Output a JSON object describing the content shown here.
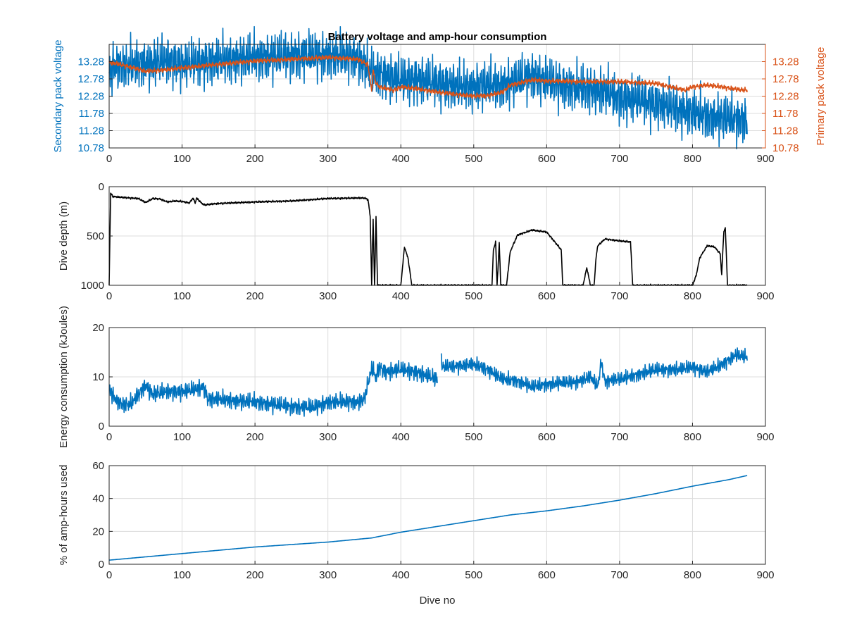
{
  "colors": {
    "blue": "#0072BD",
    "orange": "#D95319",
    "black": "#000000",
    "axis": "#262626"
  },
  "chart_data": [
    {
      "type": "line",
      "title": "Battery voltage and amp-hour consumption",
      "xlabel": "",
      "ylabel": "Secondary pack voltage",
      "ylabel_right": "Primary pack voltage",
      "xlim": [
        0,
        900
      ],
      "ylim": [
        10.78,
        13.78
      ],
      "ylim_right": [
        10.78,
        13.78
      ],
      "xticks": [
        "0",
        "100",
        "200",
        "300",
        "400",
        "500",
        "600",
        "700",
        "800",
        "900"
      ],
      "yticks": [
        "10.78",
        "11.28",
        "11.78",
        "12.28",
        "12.78",
        "13.28"
      ],
      "yticks_right": [
        "10.78",
        "11.28",
        "11.78",
        "12.28",
        "12.78",
        "13.28"
      ],
      "grid": true,
      "series": [
        {
          "axis": "left",
          "color": "#0072BD",
          "noise": [
            0.5,
            0.3,
            0.2
          ],
          "x": [
            0,
            5,
            10,
            20,
            40,
            60,
            80,
            100,
            150,
            200,
            250,
            300,
            340,
            350,
            360,
            370,
            380,
            400,
            420,
            450,
            480,
            500,
            520,
            540,
            560,
            580,
            600,
            620,
            640,
            660,
            680,
            700,
            720,
            740,
            760,
            780,
            800,
            820,
            840,
            860,
            875
          ],
          "y": [
            12.85,
            13.15,
            13.2,
            13.15,
            13.2,
            13.25,
            13.3,
            13.2,
            13.3,
            13.4,
            13.45,
            13.45,
            13.4,
            13.2,
            12.95,
            12.95,
            12.85,
            12.75,
            12.75,
            12.65,
            12.55,
            12.55,
            12.6,
            12.6,
            12.7,
            12.9,
            12.7,
            12.6,
            12.5,
            12.5,
            12.4,
            12.2,
            12.2,
            12.1,
            12.0,
            11.9,
            11.8,
            11.7,
            11.65,
            11.6,
            11.6
          ]
        },
        {
          "axis": "right",
          "color": "#D95319",
          "noise": [
            0.04,
            0.03,
            0.03
          ],
          "x": [
            0,
            10,
            30,
            50,
            80,
            100,
            150,
            200,
            250,
            300,
            340,
            355,
            360,
            362,
            365,
            370,
            380,
            390,
            400,
            420,
            450,
            480,
            500,
            520,
            530,
            540,
            545,
            550,
            560,
            580,
            600,
            650,
            700,
            750,
            770,
            790,
            800,
            820,
            840,
            860,
            875
          ],
          "y": [
            13.25,
            13.22,
            13.12,
            13.0,
            13.05,
            13.1,
            13.2,
            13.3,
            13.35,
            13.4,
            13.35,
            13.2,
            12.4,
            13.05,
            12.7,
            12.55,
            12.5,
            12.45,
            12.55,
            12.5,
            12.4,
            12.32,
            12.28,
            12.3,
            12.35,
            12.4,
            12.5,
            12.6,
            12.65,
            12.75,
            12.72,
            12.7,
            12.7,
            12.65,
            12.55,
            12.45,
            12.55,
            12.6,
            12.55,
            12.48,
            12.45
          ]
        }
      ]
    },
    {
      "type": "line",
      "xlabel": "",
      "ylabel": "Dive depth (m)",
      "xlim": [
        0,
        900
      ],
      "ylim": [
        0,
        1000
      ],
      "y_reversed": true,
      "xticks": [
        "0",
        "100",
        "200",
        "300",
        "400",
        "500",
        "600",
        "700",
        "800",
        "900"
      ],
      "yticks": [
        "0",
        "500",
        "1000"
      ],
      "grid": true,
      "series": [
        {
          "color": "#000000",
          "noise": [
            6,
            4,
            3
          ],
          "x": [
            0,
            2,
            5,
            20,
            40,
            50,
            60,
            70,
            80,
            90,
            100,
            110,
            115,
            118,
            120,
            125,
            130,
            150,
            200,
            250,
            300,
            340,
            350,
            355,
            358,
            360,
            362,
            364,
            366,
            368,
            370,
            400,
            405,
            410,
            415,
            418,
            420,
            450,
            500,
            525,
            527,
            530,
            532,
            535,
            537,
            540,
            545,
            550,
            560,
            580,
            600,
            620,
            622,
            650,
            655,
            660,
            665,
            668,
            670,
            680,
            700,
            715,
            718,
            720,
            750,
            780,
            795,
            800,
            805,
            810,
            820,
            830,
            838,
            840,
            843,
            845,
            848,
            850,
            870,
            875
          ],
          "y": [
            1000,
            65,
            100,
            110,
            120,
            160,
            120,
            125,
            155,
            145,
            150,
            165,
            115,
            165,
            115,
            155,
            185,
            170,
            155,
            145,
            120,
            115,
            115,
            130,
            300,
            1000,
            330,
            1000,
            300,
            1000,
            1000,
            1000,
            610,
            730,
            1000,
            1000,
            1000,
            1000,
            1000,
            1000,
            640,
            560,
            1000,
            570,
            1000,
            1000,
            1000,
            660,
            490,
            440,
            460,
            640,
            1000,
            1000,
            820,
            1000,
            1000,
            700,
            600,
            530,
            550,
            560,
            1000,
            1000,
            1000,
            1000,
            1000,
            1000,
            900,
            720,
            600,
            610,
            680,
            890,
            450,
            420,
            1000,
            1000,
            1000,
            1000
          ]
        }
      ]
    },
    {
      "type": "line",
      "xlabel": "",
      "ylabel": "Energy consumption (kJoules)",
      "xlim": [
        0,
        900
      ],
      "ylim": [
        0,
        20
      ],
      "xticks": [
        "0",
        "100",
        "200",
        "300",
        "400",
        "500",
        "600",
        "700",
        "800",
        "900"
      ],
      "yticks": [
        "0",
        "10",
        "20"
      ],
      "grid": true,
      "series": [
        {
          "color": "#0072BD",
          "noise": [
            1.4,
            0.6,
            0.4
          ],
          "x": [
            0,
            10,
            20,
            30,
            50,
            60,
            80,
            100,
            120,
            130,
            135,
            140,
            200,
            250,
            280,
            300,
            340,
            350,
            358,
            362,
            365,
            370,
            380,
            400,
            420,
            440,
            450
          ],
          "y": [
            7.5,
            5.2,
            4.3,
            4.5,
            8.3,
            6.5,
            7.0,
            7.0,
            7.5,
            8.0,
            5.5,
            5.5,
            4.9,
            4.0,
            3.8,
            4.9,
            4.9,
            5.5,
            10.5,
            12.0,
            9.5,
            12.0,
            11.0,
            11.5,
            11.0,
            10.0,
            9.5
          ]
        },
        {
          "color": "#0072BD",
          "noise": [
            1.2,
            0.5,
            0.3
          ],
          "x": [
            455,
            456,
            500,
            520,
            540,
            560,
            580,
            600,
            640,
            660,
            670,
            675,
            680,
            690,
            700,
            750,
            780,
            800,
            820,
            840,
            850,
            860,
            875
          ],
          "y": [
            16.0,
            12.0,
            12.5,
            11.5,
            9.5,
            9.2,
            8.0,
            8.5,
            9.0,
            10.0,
            8.0,
            13.0,
            9.0,
            9.5,
            9.5,
            11.5,
            11.5,
            12.0,
            11.0,
            12.5,
            13.5,
            14.5,
            14.0
          ]
        }
      ]
    },
    {
      "type": "line",
      "xlabel": "Dive no",
      "ylabel": "% of amp-hours used",
      "xlim": [
        0,
        900
      ],
      "ylim": [
        0,
        60
      ],
      "xticks": [
        "0",
        "100",
        "200",
        "300",
        "400",
        "500",
        "600",
        "700",
        "800",
        "900"
      ],
      "yticks": [
        "0",
        "20",
        "40",
        "60"
      ],
      "grid": true,
      "series": [
        {
          "color": "#0072BD",
          "noise": [
            0,
            0,
            0
          ],
          "x": [
            0,
            50,
            100,
            200,
            300,
            360,
            400,
            500,
            550,
            600,
            650,
            700,
            750,
            800,
            850,
            875
          ],
          "y": [
            2.5,
            4.5,
            6.5,
            10.5,
            13.5,
            16.0,
            19.5,
            26.5,
            30.0,
            32.5,
            35.5,
            39.0,
            43.0,
            47.5,
            51.5,
            54.0
          ]
        }
      ]
    }
  ]
}
